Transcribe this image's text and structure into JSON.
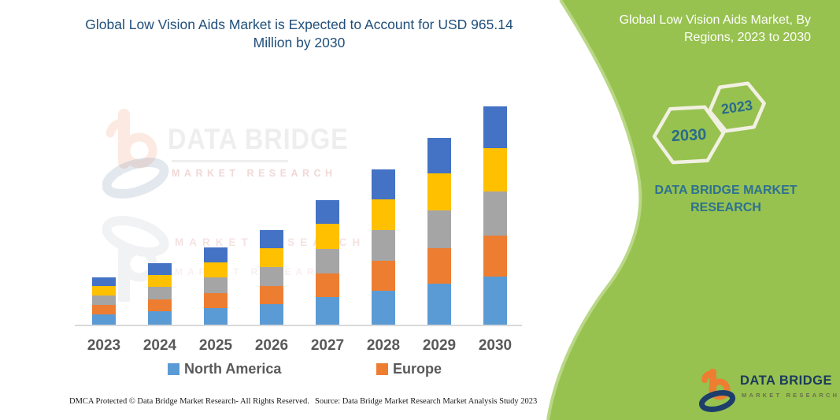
{
  "left_panel": {
    "title": "Global Low Vision Aids Market is Expected to Account for USD 965.14 Million by 2030",
    "watermark": {
      "line1": "DATA BRIDGE",
      "line2": "MARKET RESEARCH"
    },
    "footer": {
      "dmca": "DMCA Protected © Data Bridge Market Research-  All Rights Reserved.",
      "source": "Source: Data Bridge Market Research  Market Analysis Study 2023"
    }
  },
  "chart_data": {
    "type": "bar",
    "stacked": true,
    "title": "Global Low Vision Aids Market is Expected to Account for USD 965.14 Million by 2030",
    "categories": [
      "2023",
      "2024",
      "2025",
      "2026",
      "2027",
      "2028",
      "2029",
      "2030"
    ],
    "series": [
      {
        "name": "North America",
        "color": "#5B9BD5",
        "values": [
          46,
          60,
          75,
          92,
          121,
          151,
          182,
          212
        ]
      },
      {
        "name": "Europe",
        "color": "#ED7D31",
        "values": [
          40,
          52,
          65,
          79,
          105,
          131,
          157,
          183
        ]
      },
      {
        "name": "unlabeled-gray",
        "color": "#A5A5A5",
        "values": [
          42,
          54,
          68,
          84,
          110,
          137,
          165,
          193
        ]
      },
      {
        "name": "unlabeled-yellow",
        "color": "#FFC000",
        "values": [
          42,
          54,
          68,
          84,
          110,
          137,
          165,
          193
        ]
      },
      {
        "name": "unlabeled-darkblue",
        "color": "#4472C4",
        "values": [
          39,
          52,
          66,
          79,
          105,
          131,
          157,
          184.14
        ]
      }
    ],
    "totals": [
      209,
      272,
      342,
      418,
      551,
      687,
      826,
      965.14
    ],
    "unit": "USD Million (estimated; no y-axis shown)",
    "ylim": [
      0,
      1000
    ],
    "grid": false,
    "legend": [
      {
        "label": "North America",
        "color": "#5B9BD5"
      },
      {
        "label": "Europe",
        "color": "#ED7D31"
      }
    ],
    "legend_position": "bottom"
  },
  "right_panel": {
    "background_color": "#97C24F",
    "edge_highlight_color": "#B9D786",
    "title": "Global Low Vision Aids Market, By Regions, 2023 to 2030",
    "hexagon_large_label": "2030",
    "hexagon_small_label": "2023",
    "brand_heading": "DATA BRIDGE MARKET RESEARCH",
    "logo": {
      "name": "DATA BRIDGE",
      "tagline": "MARKET RESEARCH"
    },
    "accent_text_color": "#2E7191"
  }
}
